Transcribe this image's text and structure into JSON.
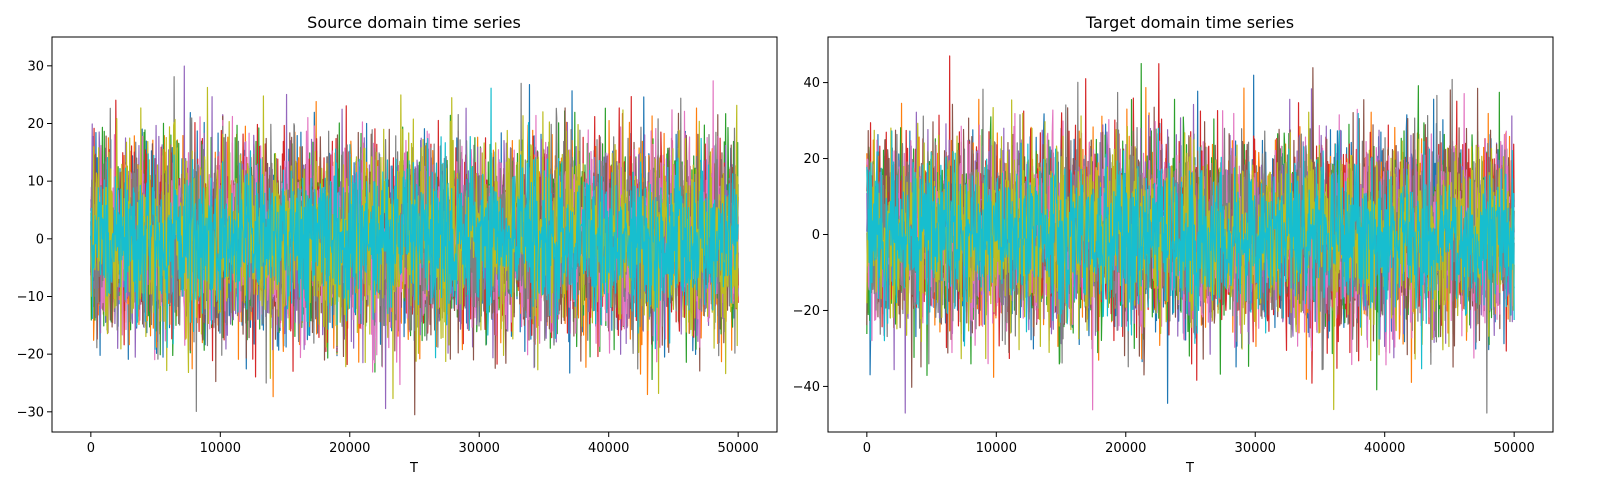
{
  "chart_data": [
    {
      "type": "line",
      "title": "Source domain time series",
      "xlabel": "T",
      "ylabel": "",
      "xlim": [
        -3000,
        53000
      ],
      "ylim": [
        -33.5,
        35
      ],
      "x_ticks": [
        0,
        10000,
        20000,
        30000,
        40000,
        50000
      ],
      "y_ticks": [
        -30,
        -20,
        -10,
        0,
        10,
        20,
        30
      ],
      "x_range": [
        0,
        49999
      ],
      "grid": false,
      "legend": "none",
      "series_count": 10,
      "series_colors": [
        "#1f77b4",
        "#ff7f0e",
        "#2ca02c",
        "#d62728",
        "#9467bd",
        "#8c564b",
        "#e377c2",
        "#7f7f7f",
        "#bcbd22",
        "#17becf"
      ],
      "series_std": [
        8,
        8,
        8,
        8,
        8,
        8,
        8,
        8,
        8,
        6.5
      ],
      "value_extent": [
        -30.5,
        31.5
      ]
    },
    {
      "type": "line",
      "title": "Target domain time series",
      "xlabel": "T",
      "ylabel": "",
      "xlim": [
        -3000,
        53000
      ],
      "ylim": [
        -52,
        52
      ],
      "x_ticks": [
        0,
        10000,
        20000,
        30000,
        40000,
        50000
      ],
      "y_ticks": [
        -40,
        -20,
        0,
        20,
        40
      ],
      "x_range": [
        0,
        49999
      ],
      "grid": false,
      "legend": "none",
      "series_count": 10,
      "series_colors": [
        "#1f77b4",
        "#ff7f0e",
        "#2ca02c",
        "#d62728",
        "#9467bd",
        "#8c564b",
        "#e377c2",
        "#7f7f7f",
        "#bcbd22",
        "#17becf"
      ],
      "series_std": [
        12,
        12,
        12,
        12,
        12,
        12,
        12,
        12,
        12,
        10
      ],
      "value_extent": [
        -47,
        47
      ]
    }
  ]
}
